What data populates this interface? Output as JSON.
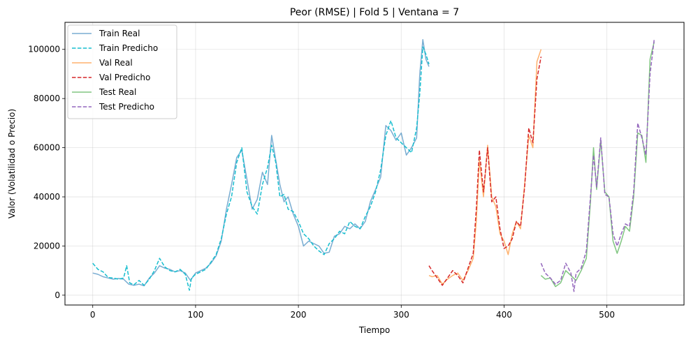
{
  "chart_data": {
    "type": "line",
    "title": "Peor (RMSE) | Fold 5 | Ventana = 7",
    "xlabel": "Tiempo",
    "ylabel": "Valor (Volatilidad o Precio)",
    "xlim": [
      -27,
      575
    ],
    "ylim": [
      -4000,
      111000
    ],
    "xticks": [
      0,
      100,
      200,
      300,
      400,
      500
    ],
    "yticks": [
      0,
      20000,
      40000,
      60000,
      80000,
      100000
    ],
    "grid": true,
    "legend_position": "top-left",
    "series": [
      {
        "name": "Train Real",
        "color": "#1f77b4",
        "dash": "solid",
        "opacity": 0.6,
        "x": [
          0,
          5,
          10,
          15,
          20,
          25,
          30,
          35,
          40,
          45,
          50,
          55,
          60,
          65,
          70,
          75,
          80,
          85,
          90,
          95,
          100,
          105,
          110,
          115,
          120,
          125,
          130,
          135,
          140,
          145,
          150,
          155,
          160,
          165,
          170,
          174,
          178,
          182,
          186,
          190,
          195,
          200,
          205,
          210,
          215,
          220,
          225,
          230,
          235,
          240,
          245,
          250,
          255,
          260,
          265,
          270,
          275,
          280,
          285,
          290,
          295,
          300,
          305,
          310,
          315,
          318,
          321,
          324,
          327
        ],
        "values": [
          9000,
          8500,
          7500,
          7000,
          6500,
          6800,
          6500,
          4500,
          4000,
          4500,
          3800,
          7000,
          9000,
          12000,
          11000,
          10500,
          9500,
          10000,
          9000,
          6000,
          9000,
          10000,
          11000,
          13000,
          16000,
          22000,
          35000,
          45000,
          56000,
          59000,
          47000,
          35000,
          39000,
          50000,
          45000,
          65000,
          55000,
          45000,
          38000,
          40000,
          33000,
          28000,
          20000,
          22000,
          21000,
          20000,
          17000,
          17500,
          24000,
          25000,
          28000,
          27000,
          29000,
          27000,
          30000,
          38000,
          43000,
          48000,
          69000,
          67000,
          63000,
          66000,
          57000,
          60000,
          64000,
          90000,
          104000,
          96000,
          93000
        ]
      },
      {
        "name": "Train Predicho",
        "color": "#17becf",
        "dash": "dashed",
        "opacity": 1,
        "x": [
          0,
          5,
          10,
          15,
          20,
          25,
          30,
          33,
          36,
          40,
          45,
          50,
          55,
          60,
          65,
          70,
          75,
          80,
          85,
          90,
          94,
          96,
          100,
          105,
          110,
          115,
          120,
          125,
          130,
          135,
          140,
          145,
          150,
          155,
          160,
          165,
          170,
          174,
          178,
          182,
          186,
          190,
          195,
          200,
          205,
          210,
          215,
          220,
          225,
          230,
          235,
          240,
          245,
          250,
          255,
          260,
          265,
          270,
          275,
          280,
          285,
          290,
          295,
          300,
          305,
          310,
          315,
          318,
          321,
          324,
          327
        ],
        "values": [
          13000,
          10500,
          9500,
          7200,
          7000,
          6500,
          7000,
          12000,
          5000,
          4200,
          6000,
          4000,
          6500,
          10000,
          15000,
          11500,
          10000,
          9500,
          10500,
          8500,
          2000,
          7000,
          8500,
          9500,
          10500,
          13500,
          16500,
          23000,
          33000,
          40000,
          54000,
          60000,
          42000,
          36000,
          33000,
          45000,
          52000,
          61000,
          54000,
          40000,
          41000,
          35000,
          34000,
          30000,
          25000,
          23000,
          20000,
          18000,
          16500,
          21000,
          23000,
          26000,
          25000,
          30000,
          28000,
          27000,
          32000,
          36000,
          42000,
          51000,
          65000,
          71000,
          64000,
          62000,
          60000,
          58000,
          68000,
          82000,
          101000,
          98000,
          94000
        ]
      },
      {
        "name": "Val Real",
        "color": "#ff7f0e",
        "dash": "solid",
        "opacity": 0.6,
        "x": [
          327,
          330,
          335,
          340,
          345,
          350,
          355,
          360,
          365,
          370,
          373,
          376,
          380,
          384,
          388,
          392,
          396,
          400,
          404,
          408,
          412,
          416,
          420,
          424,
          428,
          432,
          436
        ],
        "values": [
          8000,
          7500,
          8000,
          4500,
          6500,
          8000,
          9000,
          6000,
          10000,
          15000,
          30000,
          55000,
          40000,
          61000,
          40000,
          36000,
          25000,
          22000,
          16500,
          25000,
          30000,
          27000,
          45000,
          65000,
          60000,
          95000,
          100000
        ]
      },
      {
        "name": "Val Predicho",
        "color": "#d62728",
        "dash": "dashed",
        "opacity": 1,
        "x": [
          327,
          330,
          335,
          340,
          345,
          350,
          355,
          360,
          365,
          370,
          373,
          376,
          380,
          384,
          388,
          392,
          396,
          400,
          404,
          408,
          412,
          416,
          420,
          424,
          428,
          432,
          436
        ],
        "values": [
          12000,
          10000,
          7000,
          4000,
          7000,
          10000,
          8000,
          5000,
          11000,
          17000,
          35000,
          59000,
          42000,
          60000,
          38000,
          40000,
          27000,
          19000,
          20000,
          23000,
          30000,
          28000,
          44000,
          68000,
          62000,
          88000,
          97000
        ]
      },
      {
        "name": "Test Real",
        "color": "#2ca02c",
        "dash": "solid",
        "opacity": 0.6,
        "x": [
          436,
          440,
          445,
          450,
          455,
          460,
          465,
          470,
          475,
          480,
          484,
          487,
          490,
          494,
          498,
          502,
          506,
          510,
          514,
          518,
          522,
          526,
          530,
          534,
          538,
          542,
          546
        ],
        "values": [
          8000,
          6500,
          7000,
          3500,
          5000,
          10000,
          8000,
          6000,
          10000,
          15000,
          38000,
          60000,
          43000,
          63000,
          42000,
          40000,
          22000,
          17000,
          22000,
          28000,
          26000,
          40000,
          66000,
          65000,
          54000,
          96000,
          103000
        ]
      },
      {
        "name": "Test Predicho",
        "color": "#9467bd",
        "dash": "dashed",
        "opacity": 1,
        "x": [
          436,
          440,
          445,
          450,
          455,
          460,
          465,
          468,
          470,
          475,
          480,
          484,
          487,
          490,
          494,
          498,
          502,
          506,
          510,
          514,
          518,
          522,
          526,
          530,
          534,
          538,
          542,
          546
        ],
        "values": [
          13000,
          9000,
          7000,
          4500,
          6000,
          13000,
          9000,
          1500,
          9000,
          11000,
          18000,
          40000,
          57000,
          44000,
          64000,
          41000,
          40000,
          25000,
          20000,
          25000,
          29000,
          28000,
          42000,
          70000,
          64000,
          57000,
          90000,
          104000
        ]
      }
    ]
  }
}
